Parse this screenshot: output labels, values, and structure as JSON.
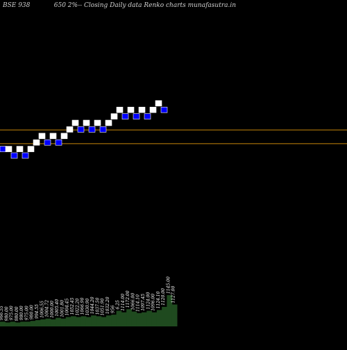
{
  "header": {
    "code": "BSE 938",
    "title": "650 2%-- Closing Daily data Renko charts munafasutra.in"
  },
  "colors": {
    "background": "#000000",
    "up_brick": "#ffffff",
    "down_brick": "#0000ff",
    "brick_stroke": "#000000",
    "level_line": "#c8860a",
    "volume_fill": "#1f4a1f",
    "volume_stroke": "#2e6b2e",
    "label_text": "#ffffff"
  },
  "chart_data": {
    "type": "renko",
    "bricks": [
      {
        "dir": "down",
        "level": 10
      },
      {
        "dir": "up",
        "level": 10
      },
      {
        "dir": "down",
        "level": 9
      },
      {
        "dir": "up",
        "level": 10
      },
      {
        "dir": "down",
        "level": 9
      },
      {
        "dir": "up",
        "level": 10
      },
      {
        "dir": "up",
        "level": 11
      },
      {
        "dir": "up",
        "level": 12
      },
      {
        "dir": "down",
        "level": 11
      },
      {
        "dir": "up",
        "level": 12
      },
      {
        "dir": "down",
        "level": 11
      },
      {
        "dir": "up",
        "level": 12
      },
      {
        "dir": "up",
        "level": 13
      },
      {
        "dir": "up",
        "level": 14
      },
      {
        "dir": "down",
        "level": 13
      },
      {
        "dir": "up",
        "level": 14
      },
      {
        "dir": "down",
        "level": 13
      },
      {
        "dir": "up",
        "level": 14
      },
      {
        "dir": "down",
        "level": 13
      },
      {
        "dir": "up",
        "level": 14
      },
      {
        "dir": "up",
        "level": 15
      },
      {
        "dir": "up",
        "level": 16
      },
      {
        "dir": "down",
        "level": 15
      },
      {
        "dir": "up",
        "level": 16
      },
      {
        "dir": "down",
        "level": 15
      },
      {
        "dir": "up",
        "level": 16
      },
      {
        "dir": "down",
        "level": 15
      },
      {
        "dir": "up",
        "level": 16
      },
      {
        "dir": "up",
        "level": 17
      },
      {
        "dir": "down",
        "level": 16
      }
    ],
    "horizontal_lines": [
      12.5,
      10.4
    ],
    "volume_labels": [
      "966.55",
      "980.00",
      "975.00",
      "980.00",
      "980.00",
      "975.00",
      "980.00",
      "994.55",
      "1006.55",
      "1004.72",
      "1000.00",
      "1005.40",
      "1001.80",
      "1004.45",
      "1052.45",
      "1022.20",
      "1066.90",
      "1030.90",
      "1044.20",
      "1037.50",
      "1051.90",
      "1032.20",
      "956",
      "6.25",
      "1114.00",
      "1172.00",
      "1066.00",
      "1114.10",
      "1097.45",
      "1124.00",
      "1096.00",
      "1124.10",
      "1120.00",
      "1145.00",
      "1127.00"
    ],
    "volume_values": [
      6,
      5,
      6,
      5,
      6,
      6,
      7,
      8,
      9,
      10,
      9,
      11,
      10,
      12,
      13,
      12,
      13,
      12,
      14,
      13,
      12,
      14,
      15,
      20,
      18,
      22,
      19,
      17,
      18,
      20,
      18,
      21,
      25,
      40,
      28
    ]
  }
}
